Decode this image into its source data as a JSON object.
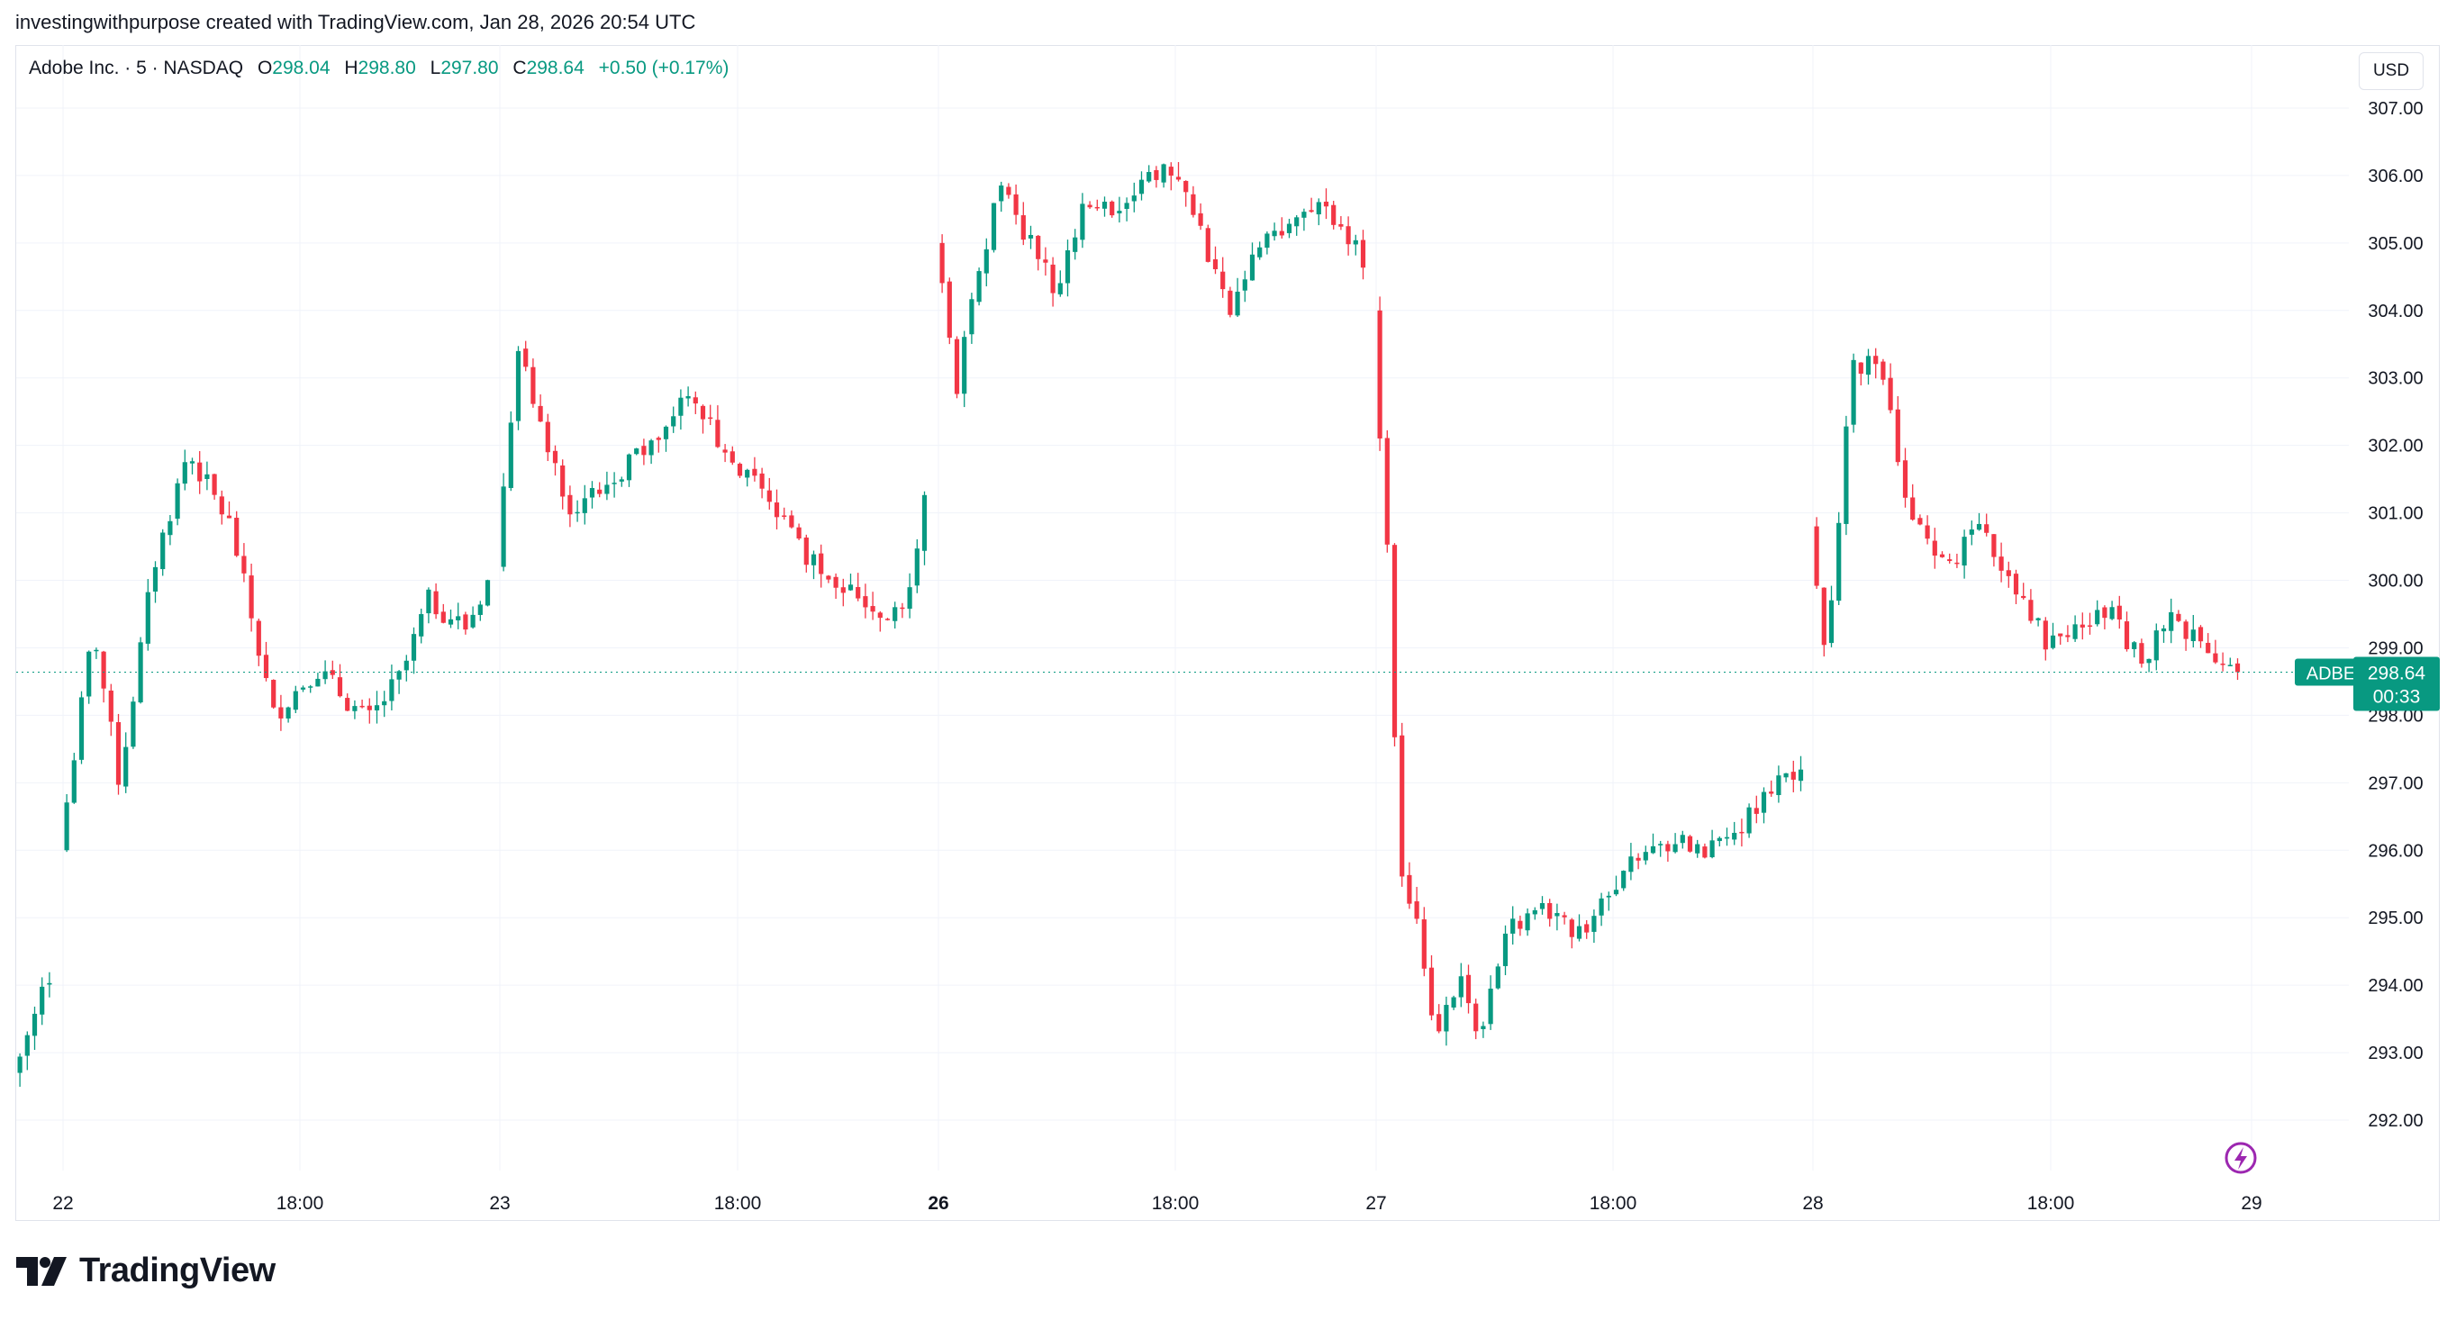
{
  "credit": "investingwithpurpose created with TradingView.com, Jan 28, 2026 20:54 UTC",
  "legend": {
    "symbol": "Adobe Inc. · 5 · NASDAQ",
    "o_label": "O",
    "o_value": "298.04",
    "h_label": "H",
    "h_value": "298.80",
    "l_label": "L",
    "l_value": "297.80",
    "c_label": "C",
    "c_value": "298.64",
    "change": "+0.50 (+0.17%)"
  },
  "currency_button": "USD",
  "price_tag": {
    "ticker": "ADBE",
    "price": "298.64",
    "countdown": "00:33"
  },
  "brand": "TradingView",
  "colors": {
    "up": "#089981",
    "down": "#f23645",
    "grid": "#f0f3fa",
    "text": "#131722",
    "marker": "#9c27b0"
  },
  "icons": [
    "lightning-marker-icon",
    "tradingview-logo-icon"
  ],
  "chart_data": {
    "type": "candlestick",
    "ylim": [
      291.4,
      307.4
    ],
    "y_ticks": [
      "307.00",
      "306.00",
      "305.00",
      "304.00",
      "303.00",
      "302.00",
      "301.00",
      "300.00",
      "299.00",
      "298.00",
      "297.00",
      "296.00",
      "295.00",
      "294.00",
      "293.00",
      "292.00"
    ],
    "x_ticks": [
      {
        "label": "22",
        "bold": false
      },
      {
        "label": "18:00",
        "bold": false
      },
      {
        "label": "23",
        "bold": false
      },
      {
        "label": "18:00",
        "bold": false
      },
      {
        "label": "26",
        "bold": true
      },
      {
        "label": "18:00",
        "bold": false
      },
      {
        "label": "27",
        "bold": false
      },
      {
        "label": "18:00",
        "bold": false
      },
      {
        "label": "28",
        "bold": false
      },
      {
        "label": "18:00",
        "bold": false
      },
      {
        "label": "29",
        "bold": false
      }
    ],
    "last_price": 298.64,
    "days": [
      {
        "day": "21",
        "anchors": [
          [
            0.0,
            292.7
          ],
          [
            0.4,
            293.3
          ],
          [
            1.0,
            294.2
          ]
        ],
        "seed": 3
      },
      {
        "day": "22",
        "anchors": [
          [
            0.0,
            296.0
          ],
          [
            0.08,
            299.3
          ],
          [
            0.14,
            297.0
          ],
          [
            0.22,
            300.2
          ],
          [
            0.3,
            301.9
          ],
          [
            0.4,
            300.8
          ],
          [
            0.5,
            298.0
          ],
          [
            0.6,
            298.7
          ],
          [
            0.72,
            297.9
          ],
          [
            0.8,
            298.6
          ],
          [
            0.86,
            299.7
          ],
          [
            0.95,
            299.3
          ],
          [
            1.0,
            300.0
          ]
        ],
        "seed": 7
      },
      {
        "day": "23",
        "anchors": [
          [
            0.0,
            300.2
          ],
          [
            0.05,
            303.5
          ],
          [
            0.1,
            302.3
          ],
          [
            0.18,
            301.0
          ],
          [
            0.3,
            301.7
          ],
          [
            0.4,
            302.2
          ],
          [
            0.45,
            302.9
          ],
          [
            0.55,
            301.6
          ],
          [
            0.62,
            301.4
          ],
          [
            0.72,
            300.4
          ],
          [
            0.8,
            300.0
          ],
          [
            0.9,
            299.5
          ],
          [
            0.96,
            299.6
          ],
          [
            1.0,
            301.2
          ]
        ],
        "seed": 11
      },
      {
        "day": "26",
        "anchors": [
          [
            0.0,
            305.0
          ],
          [
            0.05,
            302.8
          ],
          [
            0.1,
            304.5
          ],
          [
            0.15,
            305.9
          ],
          [
            0.22,
            305.0
          ],
          [
            0.28,
            304.3
          ],
          [
            0.34,
            305.4
          ],
          [
            0.4,
            305.5
          ],
          [
            0.46,
            305.7
          ],
          [
            0.5,
            306.2
          ],
          [
            0.6,
            305.6
          ],
          [
            0.68,
            304.0
          ],
          [
            0.78,
            305.1
          ],
          [
            0.9,
            305.5
          ],
          [
            1.0,
            304.8
          ]
        ],
        "seed": 19
      },
      {
        "day": "27",
        "anchors": [
          [
            0.0,
            304.0
          ],
          [
            0.04,
            299.9
          ],
          [
            0.06,
            296.0
          ],
          [
            0.1,
            295.0
          ],
          [
            0.15,
            293.3
          ],
          [
            0.2,
            294.1
          ],
          [
            0.25,
            293.3
          ],
          [
            0.32,
            294.8
          ],
          [
            0.4,
            295.1
          ],
          [
            0.48,
            294.7
          ],
          [
            0.55,
            295.4
          ],
          [
            0.62,
            295.9
          ],
          [
            0.72,
            296.2
          ],
          [
            0.8,
            296.0
          ],
          [
            0.9,
            296.7
          ],
          [
            1.0,
            297.3
          ]
        ],
        "seed": 23
      },
      {
        "day": "28",
        "anchors": [
          [
            0.0,
            300.8
          ],
          [
            0.04,
            298.8
          ],
          [
            0.1,
            303.3
          ],
          [
            0.18,
            303.0
          ],
          [
            0.22,
            301.2
          ],
          [
            0.3,
            300.2
          ],
          [
            0.4,
            300.7
          ],
          [
            0.5,
            299.8
          ],
          [
            0.55,
            299.1
          ],
          [
            0.62,
            299.3
          ],
          [
            0.7,
            299.5
          ],
          [
            0.78,
            298.7
          ],
          [
            0.84,
            299.5
          ],
          [
            0.92,
            299.1
          ],
          [
            1.0,
            298.64
          ]
        ],
        "seed": 31
      }
    ]
  }
}
